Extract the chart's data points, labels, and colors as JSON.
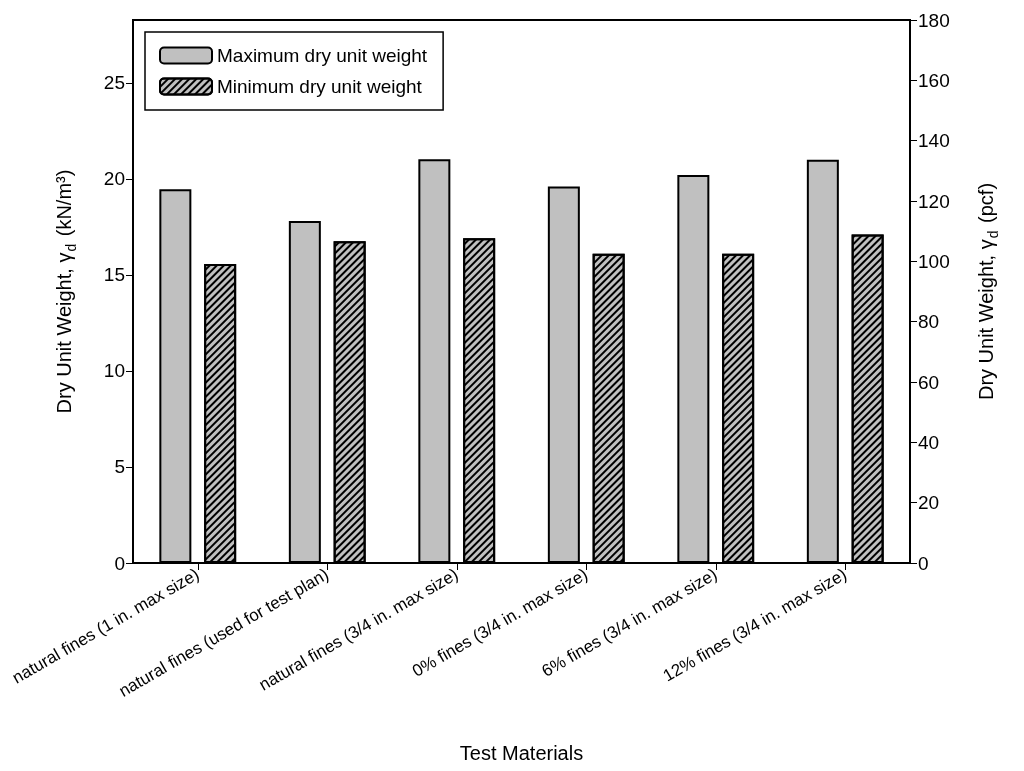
{
  "chart_data": {
    "type": "bar",
    "categories": [
      "natural fines (1 in. max size)",
      "natural fines (used for test plan)",
      "natural fines (3/4 in. max size)",
      "0% fines (3/4 in. max size)",
      "6% fines (3/4 in. max size)",
      "12% fines (3/4 in. max size)"
    ],
    "series": [
      {
        "name": "Maximum dry unit weight",
        "color": "#c0c0c0",
        "values": [
          19.46,
          17.8,
          21.02,
          19.6,
          20.2,
          21.0
        ]
      },
      {
        "name": "Minimum dry unit weight",
        "color": "#c0c0c0",
        "values": [
          15.57,
          16.75,
          16.91,
          16.1,
          16.1,
          17.1
        ]
      }
    ],
    "xlabel": "Test Materials",
    "ylabel": "Dry Unit Weight, γ$_{d}$ (kN/m³)",
    "y2label": "Dry Unit Weight, γ$_{d}$ (pcf)",
    "ylim": [
      0,
      28.27
    ],
    "yticks": [
      0,
      5,
      10,
      15,
      20,
      25
    ],
    "y2lim": [
      0,
      180
    ],
    "y2ticks": [
      0,
      20,
      40,
      60,
      80,
      100,
      120,
      140,
      160,
      180
    ],
    "legend": "top left",
    "grid": false
  }
}
